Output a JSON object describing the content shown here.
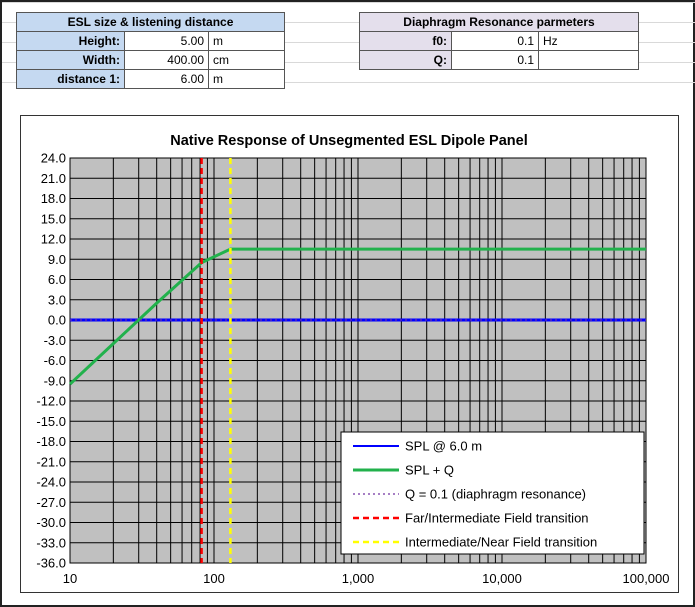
{
  "esl_table": {
    "title": "ESL size & listening distance",
    "rows": [
      {
        "label": "Height:",
        "value": "5.00",
        "unit": "m"
      },
      {
        "label": "Width:",
        "value": "400.00",
        "unit": "cm"
      },
      {
        "label": "distance 1:",
        "value": "6.00",
        "unit": "m"
      }
    ]
  },
  "diaphragm_table": {
    "title": "Diaphragm Resonance parmeters",
    "rows": [
      {
        "label": "f0:",
        "value": "0.1",
        "unit": "Hz"
      },
      {
        "label": "Q:",
        "value": "0.1",
        "unit": ""
      }
    ]
  },
  "colors": {
    "plot_bg": "#c0c0c0",
    "spl": "#0000ff",
    "spl_q": "#22b14c",
    "q_line": "#7030a0",
    "far_int": "#ff0000",
    "int_near": "#ffff00"
  },
  "chart_data": {
    "type": "line",
    "title": "Native Response of Unsegmented ESL Dipole Panel",
    "x_scale": "log",
    "xlim": [
      10,
      100000
    ],
    "ylim": [
      -36,
      24
    ],
    "y_ticks": [
      "24.0",
      "21.0",
      "18.0",
      "15.0",
      "12.0",
      "9.0",
      "6.0",
      "3.0",
      "0.0",
      "-3.0",
      "-6.0",
      "-9.0",
      "-12.0",
      "-15.0",
      "-18.0",
      "-21.0",
      "-24.0",
      "-27.0",
      "-30.0",
      "-33.0",
      "-36.0"
    ],
    "x_ticks": [
      {
        "value": 10,
        "label": "10"
      },
      {
        "value": 100,
        "label": "100"
      },
      {
        "value": 1000,
        "label": "1,000"
      },
      {
        "value": 10000,
        "label": "10,000"
      },
      {
        "value": 100000,
        "label": "100,000"
      }
    ],
    "grid": true,
    "legend_position": "bottom-right",
    "series": [
      {
        "name": "SPL @ 6.0 m",
        "color_key": "spl",
        "style": "solid",
        "x": [
          10,
          100000
        ],
        "y": [
          0,
          0
        ]
      },
      {
        "name": "SPL + Q",
        "color_key": "spl_q",
        "style": "solid",
        "x": [
          10,
          20,
          40,
          82,
          130,
          100000
        ],
        "y": [
          -9.5,
          -3.5,
          2.5,
          8.5,
          10.5,
          10.5
        ]
      },
      {
        "name": "Q = 0.1 (diaphragm resonance)",
        "color_key": "q_line",
        "style": "dotted",
        "x": [
          10,
          100000
        ],
        "y": [
          0,
          0
        ]
      }
    ],
    "vlines": [
      {
        "name": "Far/Intermediate  Field transition",
        "color_key": "far_int",
        "x": 82
      },
      {
        "name": "Intermediate/Near  Field transition",
        "color_key": "int_near",
        "x": 130
      }
    ]
  }
}
